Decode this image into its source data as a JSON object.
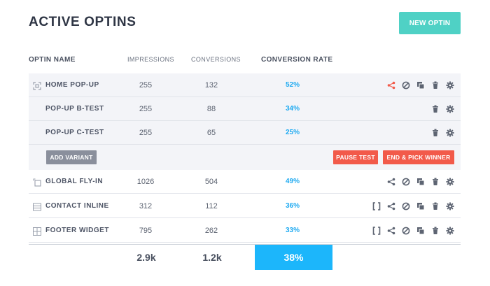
{
  "header": {
    "title": "ACTIVE OPTINS",
    "new_button": "NEW OPTIN"
  },
  "columns": {
    "name": "OPTIN NAME",
    "impressions": "IMPRESSIONS",
    "conversions": "CONVERSIONS",
    "rate": "CONVERSION RATE"
  },
  "rows": [
    {
      "name": "HOME POP-UP",
      "impressions": "255",
      "conversions": "132",
      "rate": "52%",
      "icon": "popup-icon"
    },
    {
      "name": "POP-UP B-TEST",
      "impressions": "255",
      "conversions": "88",
      "rate": "34%"
    },
    {
      "name": "POP-UP C-TEST",
      "impressions": "255",
      "conversions": "65",
      "rate": "25%"
    },
    {
      "name": "GLOBAL FLY-IN",
      "impressions": "1026",
      "conversions": "504",
      "rate": "49%",
      "icon": "flyin-icon"
    },
    {
      "name": "CONTACT INLINE",
      "impressions": "312",
      "conversions": "112",
      "rate": "36%",
      "icon": "inline-icon"
    },
    {
      "name": "FOOTER WIDGET",
      "impressions": "795",
      "conversions": "262",
      "rate": "33%",
      "icon": "widget-icon"
    }
  ],
  "variant_bar": {
    "add_variant": "ADD VARIANT",
    "pause_test": "PAUSE TEST",
    "end_pick": "END & PICK WINNER"
  },
  "totals": {
    "impressions": "2.9k",
    "conversions": "1.2k",
    "rate": "38%"
  },
  "colors": {
    "accent_teal": "#4fd1c5",
    "rate_blue": "#1eaaf1",
    "danger_red": "#f25a4a",
    "split_active": "#f25a4a"
  }
}
